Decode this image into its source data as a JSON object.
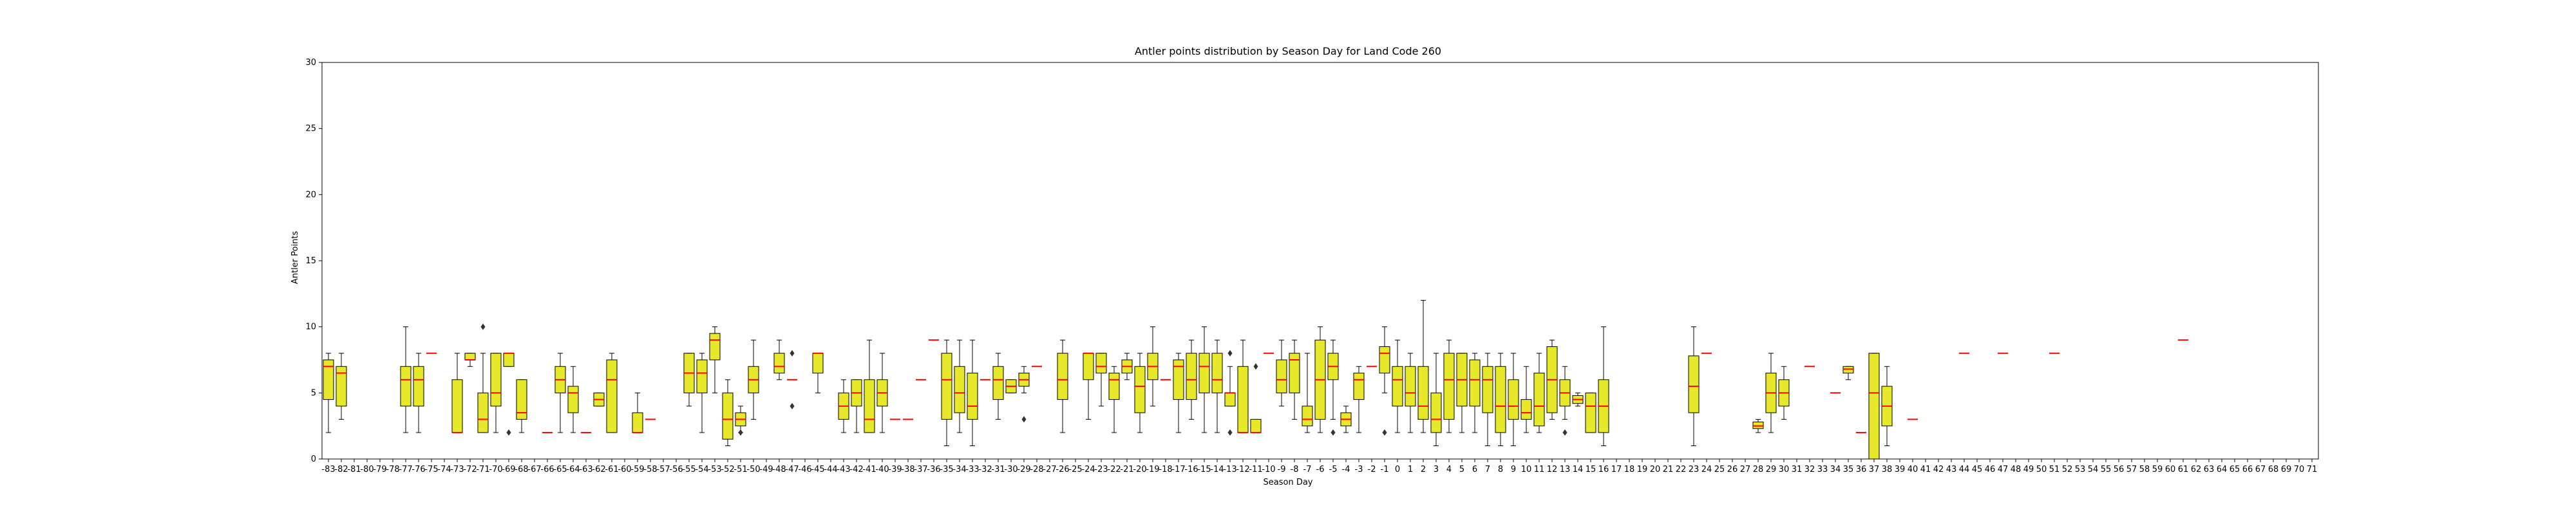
{
  "chart_data": {
    "type": "box",
    "title": "Antler points distribution by Season Day for Land Code 260",
    "xlabel": "Season Day",
    "ylabel": "Antler Points",
    "ylim": [
      0,
      30
    ],
    "yticks": [
      0,
      5,
      10,
      15,
      20,
      25,
      30
    ],
    "grid": false,
    "colors": {
      "box_fill": "#e8e82b",
      "median": "#ff0000",
      "edge": "#000000"
    },
    "x_range": [
      -83,
      71
    ],
    "boxes": [
      {
        "x": -83,
        "q1": 4.5,
        "median": 7,
        "q3": 7.5,
        "low": 2,
        "high": 8
      },
      {
        "x": -82,
        "q1": 4,
        "median": 6.5,
        "q3": 7,
        "low": 3,
        "high": 8
      },
      {
        "x": -77,
        "q1": 4,
        "median": 6,
        "q3": 7,
        "low": 2,
        "high": 10
      },
      {
        "x": -76,
        "q1": 4,
        "median": 6,
        "q3": 7,
        "low": 2,
        "high": 8
      },
      {
        "x": -75,
        "q1": 8,
        "median": 8,
        "q3": 8,
        "low": 8,
        "high": 8
      },
      {
        "x": -73,
        "q1": 2,
        "median": 2,
        "q3": 6,
        "low": 2,
        "high": 8
      },
      {
        "x": -72,
        "q1": 7.5,
        "median": 7.5,
        "q3": 8,
        "low": 7,
        "high": 8
      },
      {
        "x": -71,
        "q1": 2,
        "median": 3,
        "q3": 5,
        "low": 2,
        "high": 8,
        "outliers": [
          10
        ]
      },
      {
        "x": -70,
        "q1": 4,
        "median": 5,
        "q3": 8,
        "low": 2,
        "high": 8
      },
      {
        "x": -69,
        "q1": 7,
        "median": 8,
        "q3": 8,
        "low": 7,
        "high": 8,
        "outliers": [
          2
        ]
      },
      {
        "x": -68,
        "q1": 3,
        "median": 3.5,
        "q3": 6,
        "low": 2,
        "high": 6
      },
      {
        "x": -66,
        "q1": 2,
        "median": 2,
        "q3": 2,
        "low": 2,
        "high": 2
      },
      {
        "x": -65,
        "q1": 5,
        "median": 6,
        "q3": 7,
        "low": 2,
        "high": 8
      },
      {
        "x": -64,
        "q1": 3.5,
        "median": 5,
        "q3": 5.5,
        "low": 2,
        "high": 7
      },
      {
        "x": -63,
        "q1": 2,
        "median": 2,
        "q3": 2,
        "low": 2,
        "high": 2
      },
      {
        "x": -62,
        "q1": 4,
        "median": 4.5,
        "q3": 5,
        "low": 4,
        "high": 5
      },
      {
        "x": -61,
        "q1": 2,
        "median": 6,
        "q3": 7.5,
        "low": 2,
        "high": 8
      },
      {
        "x": -59,
        "q1": 2,
        "median": 2,
        "q3": 3.5,
        "low": 2,
        "high": 5
      },
      {
        "x": -58,
        "q1": 3,
        "median": 3,
        "q3": 3,
        "low": 3,
        "high": 3
      },
      {
        "x": -55,
        "q1": 5,
        "median": 6.5,
        "q3": 8,
        "low": 4,
        "high": 8
      },
      {
        "x": -54,
        "q1": 5,
        "median": 6.5,
        "q3": 7.5,
        "low": 2,
        "high": 8
      },
      {
        "x": -53,
        "q1": 7.5,
        "median": 9,
        "q3": 9.5,
        "low": 5,
        "high": 10
      },
      {
        "x": -52,
        "q1": 1.5,
        "median": 3,
        "q3": 5,
        "low": 1,
        "high": 6
      },
      {
        "x": -51,
        "q1": 2.5,
        "median": 3,
        "q3": 3.5,
        "low": 2,
        "high": 4,
        "outliers": [
          2
        ]
      },
      {
        "x": -50,
        "q1": 5,
        "median": 6,
        "q3": 7,
        "low": 3,
        "high": 9
      },
      {
        "x": -48,
        "q1": 6.5,
        "median": 7,
        "q3": 8,
        "low": 6,
        "high": 9
      },
      {
        "x": -47,
        "q1": 6,
        "median": 6,
        "q3": 6,
        "low": 6,
        "high": 6,
        "outliers": [
          8,
          4
        ]
      },
      {
        "x": -45,
        "q1": 6.5,
        "median": 8,
        "q3": 8,
        "low": 5,
        "high": 8
      },
      {
        "x": -43,
        "q1": 3,
        "median": 4,
        "q3": 5,
        "low": 2,
        "high": 6
      },
      {
        "x": -42,
        "q1": 4,
        "median": 5,
        "q3": 6,
        "low": 2,
        "high": 6
      },
      {
        "x": -41,
        "q1": 2,
        "median": 3,
        "q3": 6,
        "low": 2,
        "high": 9
      },
      {
        "x": -40,
        "q1": 4,
        "median": 5,
        "q3": 6,
        "low": 2,
        "high": 8
      },
      {
        "x": -39,
        "q1": 3,
        "median": 3,
        "q3": 3,
        "low": 3,
        "high": 3
      },
      {
        "x": -38,
        "q1": 3,
        "median": 3,
        "q3": 3,
        "low": 3,
        "high": 3
      },
      {
        "x": -37,
        "q1": 6,
        "median": 6,
        "q3": 6,
        "low": 6,
        "high": 6
      },
      {
        "x": -36,
        "q1": 9,
        "median": 9,
        "q3": 9,
        "low": 9,
        "high": 9
      },
      {
        "x": -35,
        "q1": 3,
        "median": 6,
        "q3": 8,
        "low": 1,
        "high": 9
      },
      {
        "x": -34,
        "q1": 3.5,
        "median": 5,
        "q3": 7,
        "low": 2,
        "high": 9
      },
      {
        "x": -33,
        "q1": 3,
        "median": 4,
        "q3": 6.5,
        "low": 1,
        "high": 9
      },
      {
        "x": -32,
        "q1": 6,
        "median": 6,
        "q3": 6,
        "low": 6,
        "high": 6
      },
      {
        "x": -31,
        "q1": 4.5,
        "median": 6,
        "q3": 7,
        "low": 3,
        "high": 8
      },
      {
        "x": -30,
        "q1": 5,
        "median": 5.5,
        "q3": 6,
        "low": 5,
        "high": 6
      },
      {
        "x": -29,
        "q1": 5.5,
        "median": 6,
        "q3": 6.5,
        "low": 5,
        "high": 7,
        "outliers": [
          3
        ]
      },
      {
        "x": -28,
        "q1": 7,
        "median": 7,
        "q3": 7,
        "low": 7,
        "high": 7
      },
      {
        "x": -26,
        "q1": 4.5,
        "median": 6,
        "q3": 8,
        "low": 2,
        "high": 9
      },
      {
        "x": -24,
        "q1": 6,
        "median": 8,
        "q3": 8,
        "low": 3,
        "high": 8
      },
      {
        "x": -23,
        "q1": 6.5,
        "median": 7,
        "q3": 8,
        "low": 4,
        "high": 8
      },
      {
        "x": -22,
        "q1": 4.5,
        "median": 6,
        "q3": 6.5,
        "low": 2,
        "high": 7
      },
      {
        "x": -21,
        "q1": 6.5,
        "median": 7,
        "q3": 7.5,
        "low": 6,
        "high": 8
      },
      {
        "x": -20,
        "q1": 3.5,
        "median": 5.5,
        "q3": 7,
        "low": 2,
        "high": 8
      },
      {
        "x": -19,
        "q1": 6,
        "median": 7,
        "q3": 8,
        "low": 4,
        "high": 10
      },
      {
        "x": -18,
        "q1": 6,
        "median": 6,
        "q3": 6,
        "low": 6,
        "high": 6
      },
      {
        "x": -17,
        "q1": 4.5,
        "median": 7,
        "q3": 7.5,
        "low": 2,
        "high": 8
      },
      {
        "x": -16,
        "q1": 4.5,
        "median": 6,
        "q3": 8,
        "low": 3,
        "high": 9
      },
      {
        "x": -15,
        "q1": 5,
        "median": 7,
        "q3": 8,
        "low": 2,
        "high": 10
      },
      {
        "x": -14,
        "q1": 5,
        "median": 6,
        "q3": 8,
        "low": 2,
        "high": 9
      },
      {
        "x": -13,
        "q1": 4,
        "median": 5,
        "q3": 5,
        "low": 4,
        "high": 7,
        "outliers": [
          8,
          2
        ]
      },
      {
        "x": -12,
        "q1": 2,
        "median": 2,
        "q3": 7,
        "low": 2,
        "high": 9
      },
      {
        "x": -11,
        "q1": 2,
        "median": 2,
        "q3": 3,
        "low": 2,
        "high": 3,
        "outliers": [
          7
        ]
      },
      {
        "x": -10,
        "q1": 8,
        "median": 8,
        "q3": 8,
        "low": 8,
        "high": 8
      },
      {
        "x": -9,
        "q1": 5,
        "median": 6,
        "q3": 7.5,
        "low": 4,
        "high": 9
      },
      {
        "x": -8,
        "q1": 5,
        "median": 7.5,
        "q3": 8,
        "low": 3,
        "high": 9
      },
      {
        "x": -7,
        "q1": 2.5,
        "median": 3,
        "q3": 4,
        "low": 2,
        "high": 8
      },
      {
        "x": -6,
        "q1": 3,
        "median": 6,
        "q3": 9,
        "low": 2,
        "high": 10
      },
      {
        "x": -5,
        "q1": 6,
        "median": 7,
        "q3": 8,
        "low": 3,
        "high": 9,
        "outliers": [
          2
        ]
      },
      {
        "x": -4,
        "q1": 2.5,
        "median": 3,
        "q3": 3.5,
        "low": 2,
        "high": 4
      },
      {
        "x": -3,
        "q1": 4.5,
        "median": 6,
        "q3": 6.5,
        "low": 2,
        "high": 7
      },
      {
        "x": -2,
        "q1": 7,
        "median": 7,
        "q3": 7,
        "low": 7,
        "high": 7
      },
      {
        "x": -1,
        "q1": 6.5,
        "median": 8,
        "q3": 8.5,
        "low": 5,
        "high": 10,
        "outliers": [
          2
        ]
      },
      {
        "x": 0,
        "q1": 4,
        "median": 6,
        "q3": 7,
        "low": 2,
        "high": 9
      },
      {
        "x": 1,
        "q1": 4,
        "median": 5,
        "q3": 7,
        "low": 2,
        "high": 8
      },
      {
        "x": 2,
        "q1": 3,
        "median": 4,
        "q3": 7,
        "low": 2,
        "high": 12
      },
      {
        "x": 3,
        "q1": 2,
        "median": 3,
        "q3": 5,
        "low": 1,
        "high": 8
      },
      {
        "x": 4,
        "q1": 3,
        "median": 6,
        "q3": 8,
        "low": 2,
        "high": 9
      },
      {
        "x": 5,
        "q1": 4,
        "median": 6,
        "q3": 8,
        "low": 2,
        "high": 8
      },
      {
        "x": 6,
        "q1": 4,
        "median": 6,
        "q3": 7.5,
        "low": 2,
        "high": 8
      },
      {
        "x": 7,
        "q1": 3.5,
        "median": 6,
        "q3": 7,
        "low": 1,
        "high": 8
      },
      {
        "x": 8,
        "q1": 2,
        "median": 4,
        "q3": 7,
        "low": 1,
        "high": 8
      },
      {
        "x": 9,
        "q1": 3,
        "median": 4,
        "q3": 6,
        "low": 1,
        "high": 8
      },
      {
        "x": 10,
        "q1": 3,
        "median": 3.5,
        "q3": 4.5,
        "low": 2,
        "high": 7
      },
      {
        "x": 11,
        "q1": 2.5,
        "median": 4,
        "q3": 6.5,
        "low": 2,
        "high": 8
      },
      {
        "x": 12,
        "q1": 3.5,
        "median": 6,
        "q3": 8.5,
        "low": 3,
        "high": 9
      },
      {
        "x": 13,
        "q1": 4,
        "median": 5,
        "q3": 6,
        "low": 3,
        "high": 7,
        "outliers": [
          2
        ]
      },
      {
        "x": 14,
        "q1": 4.2,
        "median": 4.5,
        "q3": 4.8,
        "low": 4,
        "high": 5
      },
      {
        "x": 15,
        "q1": 2,
        "median": 4,
        "q3": 5,
        "low": 2,
        "high": 5
      },
      {
        "x": 16,
        "q1": 2,
        "median": 4,
        "q3": 6,
        "low": 1,
        "high": 10
      },
      {
        "x": 23,
        "q1": 3.5,
        "median": 5.5,
        "q3": 7.8,
        "low": 1,
        "high": 10
      },
      {
        "x": 24,
        "q1": 8,
        "median": 8,
        "q3": 8,
        "low": 8,
        "high": 8
      },
      {
        "x": 28,
        "q1": 2.3,
        "median": 2.5,
        "q3": 2.8,
        "low": 2,
        "high": 3
      },
      {
        "x": 29,
        "q1": 3.5,
        "median": 5,
        "q3": 6.5,
        "low": 2,
        "high": 8
      },
      {
        "x": 30,
        "q1": 4,
        "median": 5,
        "q3": 6,
        "low": 3,
        "high": 7
      },
      {
        "x": 32,
        "q1": 7,
        "median": 7,
        "q3": 7,
        "low": 7,
        "high": 7
      },
      {
        "x": 34,
        "q1": 5,
        "median": 5,
        "q3": 5,
        "low": 5,
        "high": 5
      },
      {
        "x": 35,
        "q1": 6.5,
        "median": 6.8,
        "q3": 7,
        "low": 6,
        "high": 7
      },
      {
        "x": 36,
        "q1": 2,
        "median": 2,
        "q3": 2,
        "low": 2,
        "high": 2
      },
      {
        "x": 37,
        "q1": 0,
        "median": 5,
        "q3": 8,
        "low": 0,
        "high": 8
      },
      {
        "x": 38,
        "q1": 2.5,
        "median": 4,
        "q3": 5.5,
        "low": 1,
        "high": 7
      },
      {
        "x": 40,
        "q1": 3,
        "median": 3,
        "q3": 3,
        "low": 3,
        "high": 3
      },
      {
        "x": 44,
        "q1": 8,
        "median": 8,
        "q3": 8,
        "low": 8,
        "high": 8
      },
      {
        "x": 47,
        "q1": 8,
        "median": 8,
        "q3": 8,
        "low": 8,
        "high": 8
      },
      {
        "x": 51,
        "q1": 8,
        "median": 8,
        "q3": 8,
        "low": 8,
        "high": 8
      },
      {
        "x": 61,
        "q1": 9,
        "median": 9,
        "q3": 9,
        "low": 9,
        "high": 9
      }
    ]
  }
}
